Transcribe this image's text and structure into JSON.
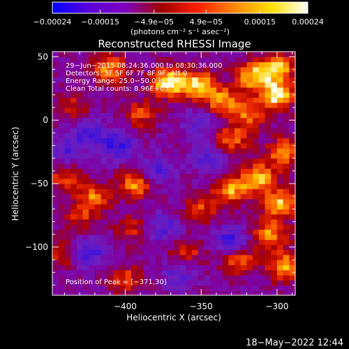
{
  "colorbar": {
    "ticks": [
      "−0.00024",
      "−0.00015",
      "−4.9e−05",
      "4.9e−05",
      "0.00015",
      "0.00024"
    ],
    "units_label": "(photons cm⁻² s⁻¹ asec⁻²)",
    "colors": [
      "#0000ff",
      "#5a00d8",
      "#8000c0",
      "#a00000",
      "#ff2000",
      "#ff8800",
      "#ffe000",
      "#ffffff"
    ]
  },
  "chart_data": {
    "type": "heatmap",
    "title": "Reconstructed RHESSI Image",
    "xlabel": "Heliocentric X (arcsec)",
    "ylabel": "Heliocentric Y (arcsec)",
    "xlim": [
      -448,
      -288
    ],
    "ylim": [
      -138,
      54
    ],
    "x_ticks": [
      -400,
      -350,
      -300
    ],
    "y_ticks": [
      50,
      0,
      -50,
      -100
    ],
    "x_tick_labels": [
      "−400",
      "−350",
      "−300"
    ],
    "y_tick_labels": [
      "50",
      "0",
      "−50",
      "−100"
    ],
    "value_range": [
      -0.00024,
      0.00024
    ],
    "grid": false,
    "annotations": {
      "time": "29−Jun−2015 08:24:36.000 to 08:30:36.000",
      "detectors": "Detectors: 3F 5F 6F 7F 8F 9F, Att 0",
      "energy": "Energy Range: 25.0−50.0 keV",
      "clean": "Clean    Total counts: 8.96E+03",
      "peak": "Position of Peak = [−371,30]"
    },
    "peak": {
      "x": -371,
      "y": 30
    },
    "bright_regions": [
      {
        "x": -410,
        "y": 40,
        "value": 0.00018
      },
      {
        "x": -372,
        "y": 30,
        "value": 0.00024
      },
      {
        "x": -352,
        "y": 28,
        "value": 0.00022
      },
      {
        "x": -336,
        "y": 15,
        "value": 0.00018
      },
      {
        "x": -316,
        "y": 35,
        "value": 0.0002
      },
      {
        "x": -300,
        "y": 20,
        "value": 0.00024
      },
      {
        "x": -300,
        "y": 42,
        "value": 0.0002
      },
      {
        "x": -318,
        "y": 5,
        "value": 0.00015
      },
      {
        "x": -330,
        "y": -15,
        "value": 0.00015
      },
      {
        "x": -295,
        "y": -25,
        "value": 0.00018
      },
      {
        "x": -312,
        "y": -45,
        "value": 0.0002
      },
      {
        "x": -330,
        "y": -55,
        "value": 0.00018
      },
      {
        "x": -350,
        "y": -70,
        "value": 0.00012
      },
      {
        "x": -298,
        "y": -65,
        "value": 0.0002
      },
      {
        "x": -305,
        "y": -90,
        "value": 0.00018
      },
      {
        "x": -295,
        "y": -115,
        "value": 0.0002
      },
      {
        "x": -325,
        "y": -110,
        "value": 0.00015
      },
      {
        "x": -360,
        "y": -105,
        "value": 0.00012
      },
      {
        "x": -393,
        "y": -50,
        "value": 0.00018
      },
      {
        "x": -420,
        "y": -60,
        "value": 0.00015
      },
      {
        "x": -440,
        "y": -45,
        "value": 0.00012
      },
      {
        "x": -430,
        "y": -75,
        "value": 0.0001
      },
      {
        "x": -395,
        "y": -85,
        "value": 0.0001
      },
      {
        "x": -440,
        "y": -105,
        "value": 0.00012
      },
      {
        "x": -400,
        "y": -125,
        "value": 0.00012
      },
      {
        "x": -435,
        "y": 10,
        "value": 0.0001
      },
      {
        "x": -390,
        "y": 5,
        "value": 0.00012
      }
    ],
    "dark_regions": [
      {
        "x": -405,
        "y": -20,
        "value": -0.00015
      },
      {
        "x": -425,
        "y": -10,
        "value": -0.00012
      },
      {
        "x": -380,
        "y": -40,
        "value": -0.00012
      },
      {
        "x": -425,
        "y": -105,
        "value": -0.00015
      },
      {
        "x": -330,
        "y": -95,
        "value": -0.00015
      },
      {
        "x": -375,
        "y": -85,
        "value": -0.00012
      },
      {
        "x": -345,
        "y": -30,
        "value": -0.0001
      },
      {
        "x": -365,
        "y": -120,
        "value": -0.0001
      },
      {
        "x": -350,
        "y": 0,
        "value": -0.0001
      },
      {
        "x": -440,
        "y": -25,
        "value": -0.0001
      }
    ]
  },
  "footer": {
    "timestamp": "18−May−2022 12:44"
  }
}
